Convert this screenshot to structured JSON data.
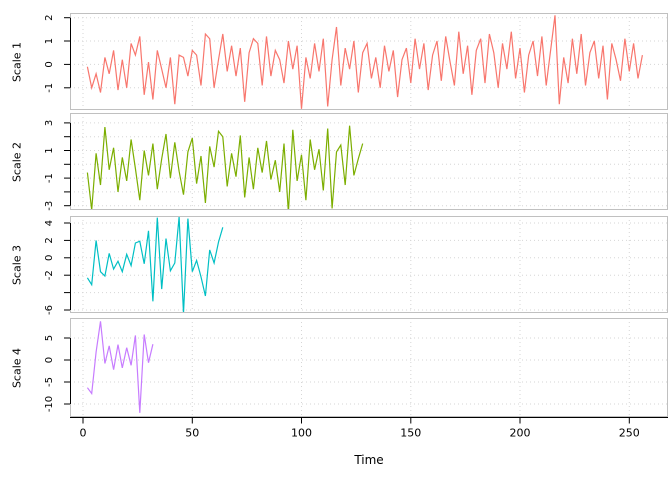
{
  "figure": {
    "xlabel": "Time",
    "background": "#ffffff",
    "grid_color": "#d6d6d6",
    "panel_border_color": "#c0c0c0",
    "axis_color": "#000000",
    "x_ticks": [
      0,
      50,
      100,
      150,
      200,
      250
    ],
    "x_axis_range": [
      0,
      256
    ]
  },
  "chart_data": [
    {
      "type": "line",
      "ylabel": "Scale 1",
      "color": "#F8766D",
      "ylim": [
        -1.95,
        2.2
      ],
      "yticks": [
        {
          "v": 2,
          "l": "2"
        },
        {
          "v": 1,
          "l": "1"
        },
        {
          "v": 0,
          "l": "0"
        },
        {
          "v": -1,
          "l": "-1"
        }
      ],
      "ygrid": [
        2,
        1,
        0,
        -1
      ],
      "x_start": 2,
      "x_step": 2,
      "values": [
        -0.1,
        -1.0,
        -0.4,
        -1.2,
        0.3,
        -0.4,
        0.6,
        -1.1,
        0.2,
        -1.0,
        0.9,
        0.4,
        1.2,
        -1.3,
        0.1,
        -1.5,
        0.6,
        -0.2,
        -1.0,
        0.3,
        -1.7,
        0.4,
        0.3,
        -0.5,
        0.6,
        0.4,
        -0.9,
        1.3,
        1.1,
        -1.0,
        0.2,
        1.3,
        -0.3,
        0.8,
        -0.5,
        0.7,
        -1.6,
        0.5,
        1.1,
        0.9,
        -0.9,
        1.2,
        -0.5,
        0.6,
        0.2,
        -0.8,
        1.0,
        -0.2,
        0.8,
        -1.9,
        0.3,
        -0.6,
        0.9,
        -0.3,
        1.1,
        -1.8,
        0.2,
        1.6,
        -0.9,
        0.7,
        -0.2,
        1.0,
        -1.2,
        0.5,
        0.9,
        -0.6,
        0.3,
        -1.0,
        0.8,
        -0.3,
        0.6,
        -1.4,
        0.2,
        0.7,
        -0.8,
        1.1,
        -0.2,
        0.9,
        -1.1,
        0.4,
        1.0,
        -0.7,
        1.2,
        0.1,
        -0.9,
        1.4,
        -0.4,
        0.8,
        -1.3,
        0.6,
        1.1,
        -0.8,
        1.3,
        0.5,
        -1.0,
        0.9,
        -0.2,
        1.4,
        -0.6,
        0.7,
        -1.2,
        0.4,
        1.0,
        -0.5,
        1.2,
        -0.9,
        0.6,
        2.1,
        -1.7,
        0.3,
        -0.8,
        1.1,
        -0.4,
        1.3,
        -0.9,
        0.5,
        1.0,
        -0.6,
        0.8,
        -1.5,
        0.9,
        0.2,
        -0.7,
        1.1,
        -0.3,
        0.9,
        -0.6,
        0.4
      ]
    },
    {
      "type": "line",
      "ylabel": "Scale 2",
      "color": "#7CAE00",
      "ylim": [
        -3.31,
        3.72
      ],
      "yticks": [
        {
          "v": 3,
          "l": "3"
        },
        {
          "v": 2,
          "l": ""
        },
        {
          "v": 1,
          "l": "1"
        },
        {
          "v": 0,
          "l": ""
        },
        {
          "v": -1,
          "l": "-1"
        },
        {
          "v": -2,
          "l": ""
        },
        {
          "v": -3,
          "l": "-3"
        }
      ],
      "ygrid": [
        3,
        2,
        1,
        0,
        -1,
        -2,
        -3
      ],
      "x_start": 2,
      "x_step": 2,
      "values": [
        -0.6,
        -3.3,
        0.8,
        -1.5,
        2.7,
        -0.4,
        1.2,
        -2.0,
        0.5,
        -1.2,
        1.8,
        -0.3,
        -2.6,
        1.0,
        -0.8,
        1.5,
        -1.8,
        0.4,
        2.2,
        -1.0,
        1.6,
        -0.5,
        -2.2,
        0.9,
        1.9,
        -1.4,
        0.6,
        -2.8,
        1.3,
        -0.2,
        2.4,
        2.0,
        -1.6,
        0.8,
        -0.9,
        2.1,
        -2.4,
        0.5,
        -1.8,
        1.2,
        -0.6,
        1.7,
        -1.1,
        0.3,
        -2.0,
        1.5,
        -3.5,
        2.5,
        -1.2,
        0.7,
        -2.6,
        1.8,
        -0.4,
        1.1,
        -1.9,
        2.6,
        -3.2,
        0.9,
        1.4,
        -1.5,
        2.8,
        -0.8,
        0.4,
        1.5
      ]
    },
    {
      "type": "line",
      "ylabel": "Scale 3",
      "color": "#00BFC4",
      "ylim": [
        -6.35,
        4.8
      ],
      "yticks": [
        {
          "v": 4,
          "l": "4"
        },
        {
          "v": 2,
          "l": "2"
        },
        {
          "v": 0,
          "l": "0"
        },
        {
          "v": -2,
          "l": "-2"
        },
        {
          "v": -4,
          "l": ""
        },
        {
          "v": -6,
          "l": "-6"
        }
      ],
      "ygrid": [
        4,
        2,
        0,
        -2,
        -4,
        -6
      ],
      "x_start": 2,
      "x_step": 2,
      "values": [
        -2.3,
        -3.1,
        2.0,
        -1.6,
        -2.1,
        0.5,
        -1.3,
        -0.4,
        -1.6,
        0.4,
        -0.9,
        1.7,
        1.9,
        -0.7,
        3.1,
        -5.0,
        4.6,
        -3.6,
        2.2,
        -1.5,
        -0.6,
        4.7,
        -6.4,
        4.5,
        -1.6,
        -0.3,
        -2.2,
        -4.4,
        0.9,
        -0.6,
        1.8,
        3.5
      ]
    },
    {
      "type": "line",
      "ylabel": "Scale 4",
      "color": "#C77CFF",
      "ylim": [
        -12.95,
        9.55
      ],
      "yticks": [
        {
          "v": 5,
          "l": "5"
        },
        {
          "v": 0,
          "l": "0"
        },
        {
          "v": -5,
          "l": "-5"
        },
        {
          "v": -10,
          "l": "-10"
        }
      ],
      "ygrid": [
        5,
        0,
        -5,
        -10
      ],
      "x_start": 2,
      "x_step": 2,
      "values": [
        -6.3,
        -7.6,
        1.8,
        8.8,
        -0.8,
        3.2,
        -2.2,
        3.5,
        -1.8,
        2.8,
        -1.2,
        5.6,
        -12.0,
        5.8,
        -0.6,
        3.6
      ]
    }
  ]
}
